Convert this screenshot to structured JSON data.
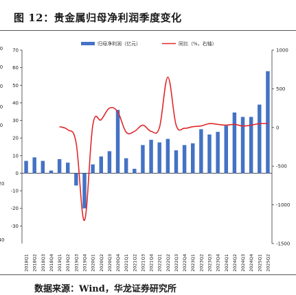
{
  "title": "图 12：贵金属归母净利润季度变化",
  "source": "数据来源：Wind，华龙证券研究所",
  "colors": {
    "bar": "#4472C4",
    "line": "#E0262A"
  },
  "chart_data": {
    "type": "bar+line",
    "categories": [
      "2018Q1",
      "2018Q2",
      "2018Q3",
      "2018Q4",
      "2019Q1",
      "2019Q2",
      "2019Q3",
      "2019Q4",
      "2020Q1",
      "2020Q2",
      "2020Q3",
      "2020Q4",
      "2021Q1",
      "2021Q2",
      "2021Q3",
      "2021Q4",
      "2022Q1",
      "2022Q2",
      "2022Q3",
      "2022Q4",
      "2023Q1",
      "2023Q2",
      "2023Q3",
      "2023Q4",
      "2024Q1",
      "2024Q2",
      "2024Q3",
      "2024Q4",
      "2025Q1",
      "2025Q2"
    ],
    "series": [
      {
        "name": "归母净利润（亿元）",
        "type": "bar",
        "axis": "left",
        "values": [
          7,
          9,
          7,
          1.5,
          8,
          6,
          -7,
          -20,
          5,
          9.5,
          12.5,
          36,
          8.5,
          2.5,
          16,
          19,
          17.5,
          19.5,
          13,
          16,
          17,
          25,
          22,
          23.5,
          27,
          34.5,
          32,
          32,
          39,
          58
        ]
      },
      {
        "name": "同比（%，右轴）",
        "type": "line",
        "axis": "right",
        "values": [
          null,
          null,
          null,
          null,
          10,
          -30,
          -200,
          -1200,
          30,
          100,
          250,
          200,
          -60,
          -50,
          30,
          -50,
          0,
          650,
          30,
          -10,
          10,
          20,
          50,
          40,
          30,
          40,
          20,
          30,
          50,
          50
        ]
      }
    ],
    "left_axis": {
      "ylim": [
        -40,
        70
      ],
      "ticks": [
        -30,
        -20,
        -10,
        0,
        10,
        20,
        30,
        40,
        50,
        60,
        70
      ],
      "tick_labels": [
        "-30",
        "-20",
        "-10",
        "0",
        "10",
        "20",
        "30",
        "40",
        "50",
        "60",
        "70"
      ],
      "edge_labels": [
        "0",
        "0",
        "0",
        "0",
        "0",
        "20",
        "40"
      ]
    },
    "right_axis": {
      "ylim": [
        -1500,
        1000
      ],
      "ticks": [
        -1500,
        -1000,
        -500,
        0,
        500,
        1000
      ],
      "tick_labels": [
        "-1500",
        "-1000",
        "-500",
        "0",
        "500",
        "1000"
      ]
    },
    "legend": "top-center",
    "grid": false
  }
}
